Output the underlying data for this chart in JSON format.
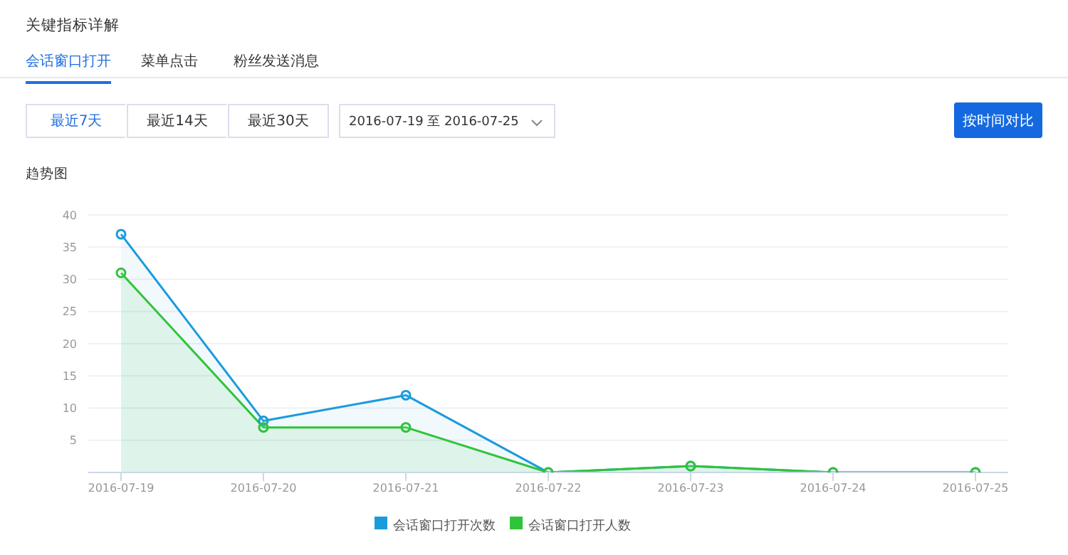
{
  "chart_data": {
    "type": "area",
    "title": "关键指标详解",
    "subtitle": "趋势图",
    "annotations": [
      "会话窗口打开",
      "菜单点击",
      "粉丝发送消息",
      "最近7天",
      "最近14天",
      "最近30天",
      "2016-07-19 至 2016-07-25",
      "按时间对比"
    ],
    "categories": [
      "2016-07-19",
      "2016-07-20",
      "2016-07-21",
      "2016-07-22",
      "2016-07-23",
      "2016-07-24",
      "2016-07-25"
    ],
    "series": [
      {
        "name": "会话窗口打开次数",
        "color": "#1a9bdc",
        "values": [
          37,
          8,
          12,
          0,
          1,
          0,
          0
        ]
      },
      {
        "name": "会话窗口打开人数",
        "color": "#2fc43a",
        "values": [
          31,
          7,
          7,
          0,
          1,
          0,
          0
        ]
      }
    ],
    "ylim": [
      0,
      40
    ],
    "yticks": [
      5,
      10,
      15,
      20,
      25,
      30,
      35,
      40
    ],
    "grid": "y",
    "legend": "bottom",
    "marker": "circle",
    "line_style": "solid"
  }
}
